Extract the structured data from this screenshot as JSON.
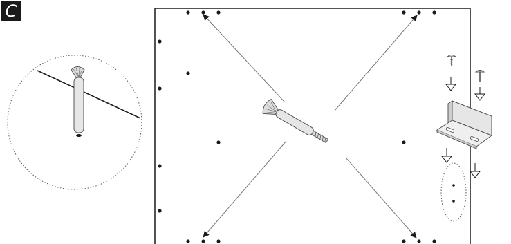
{
  "step": {
    "label": "C"
  },
  "icons": {
    "detail_magnifier": "circle-detail-icon",
    "drill_bit": "drill-icon",
    "screw": "screw-icon",
    "bracket": "l-bracket-icon",
    "arrow": "arrow-icon"
  },
  "colors": {
    "ink": "#1a1a1a",
    "part_fill": "#e6e6e6",
    "part_stroke": "#555555",
    "arrow_line": "#777777"
  }
}
